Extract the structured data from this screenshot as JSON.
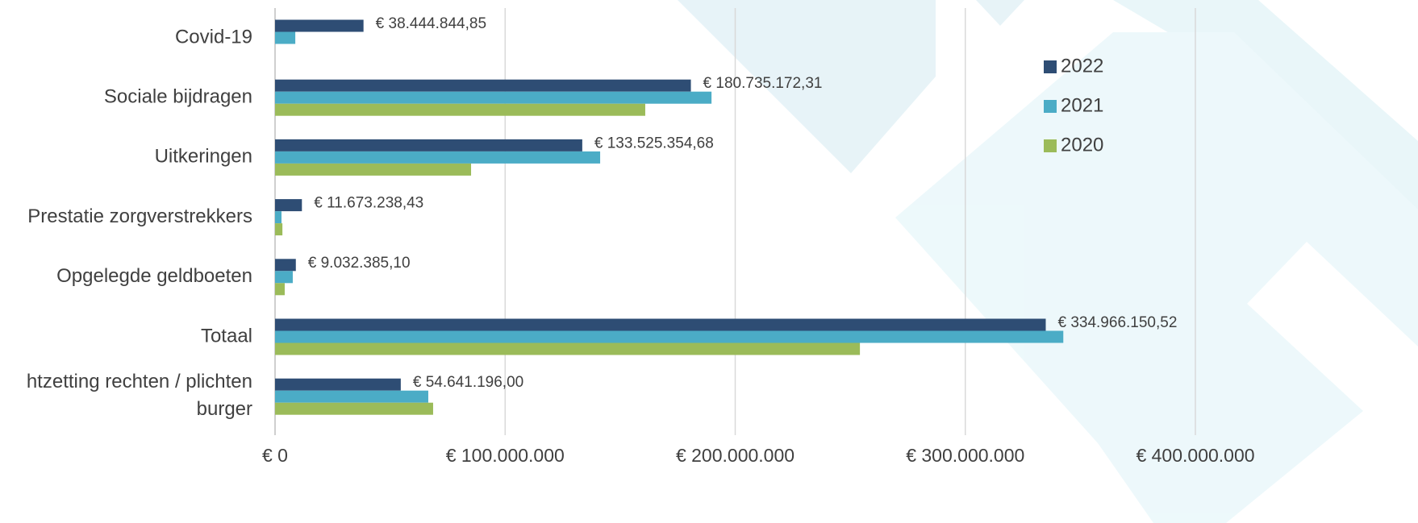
{
  "chart_data": {
    "type": "bar",
    "orientation": "horizontal",
    "categories": [
      "Covid-19",
      "Sociale bijdragen",
      "Uitkeringen",
      "Prestatie zorgverstrekkers",
      "Opgelegde geldboeten",
      "Totaal",
      "htzetting rechten / plichten burger"
    ],
    "series": [
      {
        "name": "2022",
        "color": "#2e4d74",
        "values": [
          38444844.85,
          180735172.31,
          133525354.68,
          11673238.43,
          9032385.1,
          334966150.52,
          54641196.0
        ],
        "value_labels": [
          "€ 38.444.844,85",
          "€ 180.735.172,31",
          "€ 133.525.354,68",
          "€ 11.673.238,43",
          "€ 9.032.385,10",
          "€ 334.966.150,52",
          "€ 54.641.196,00"
        ]
      },
      {
        "name": "2021",
        "color": "#4bacc6",
        "values": [
          8800000,
          189700000,
          141300000,
          2800000,
          7700000,
          342600000,
          66600000
        ]
      },
      {
        "name": "2020",
        "color": "#9bbb59",
        "values": [
          null,
          160900000,
          85200000,
          3200000,
          4200000,
          254200000,
          68700000
        ]
      }
    ],
    "xlim": [
      0,
      400000000
    ],
    "xticks": [
      {
        "value": 0,
        "label": "€ 0"
      },
      {
        "value": 100000000,
        "label": "€ 100.000.000"
      },
      {
        "value": 200000000,
        "label": "€ 200.000.000"
      },
      {
        "value": 300000000,
        "label": "€ 300.000.000"
      },
      {
        "value": 400000000,
        "label": "€ 400.000.000"
      }
    ],
    "grid": true,
    "legend": "right"
  }
}
